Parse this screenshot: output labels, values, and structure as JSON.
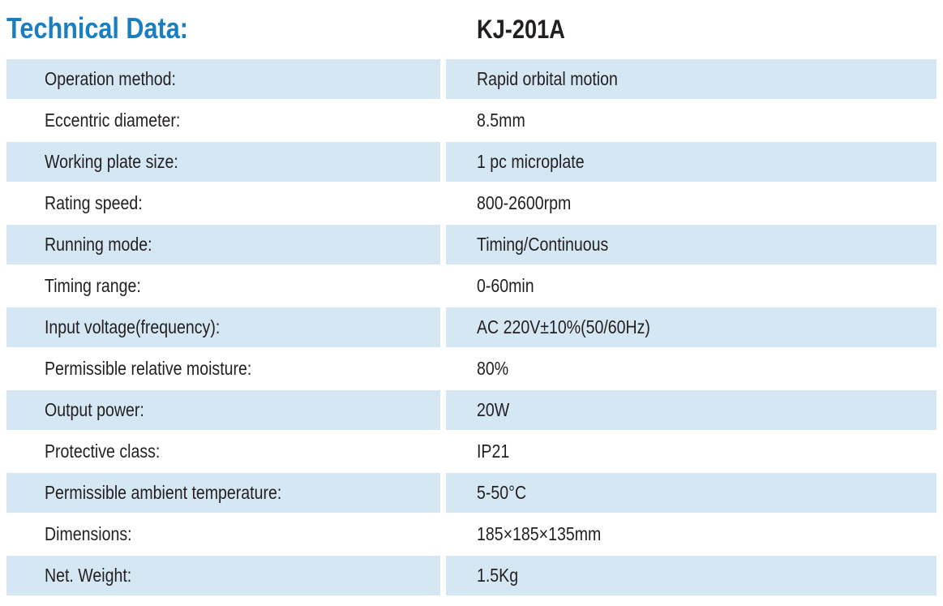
{
  "header": {
    "title": "Technical Data:",
    "model": "KJ-201A"
  },
  "table": {
    "rows": [
      [
        "Operation method:",
        "Rapid orbital motion"
      ],
      [
        "Eccentric diameter:",
        "8.5mm"
      ],
      [
        "Working plate size:",
        "1 pc microplate"
      ],
      [
        "Rating speed:",
        "800-2600rpm"
      ],
      [
        "Running mode:",
        "Timing/Continuous"
      ],
      [
        "Timing range:",
        "0-60min"
      ],
      [
        "Input voltage(frequency):",
        "AC 220V±10%(50/60Hz)"
      ],
      [
        "Permissible relative moisture:",
        "80%"
      ],
      [
        "Output power:",
        "20W"
      ],
      [
        "Protective class:",
        "IP21"
      ],
      [
        "Permissible ambient temperature:",
        "5-50°C"
      ],
      [
        "Dimensions:",
        "185×185×135mm"
      ],
      [
        "Net. Weight:",
        "1.5Kg"
      ]
    ]
  }
}
